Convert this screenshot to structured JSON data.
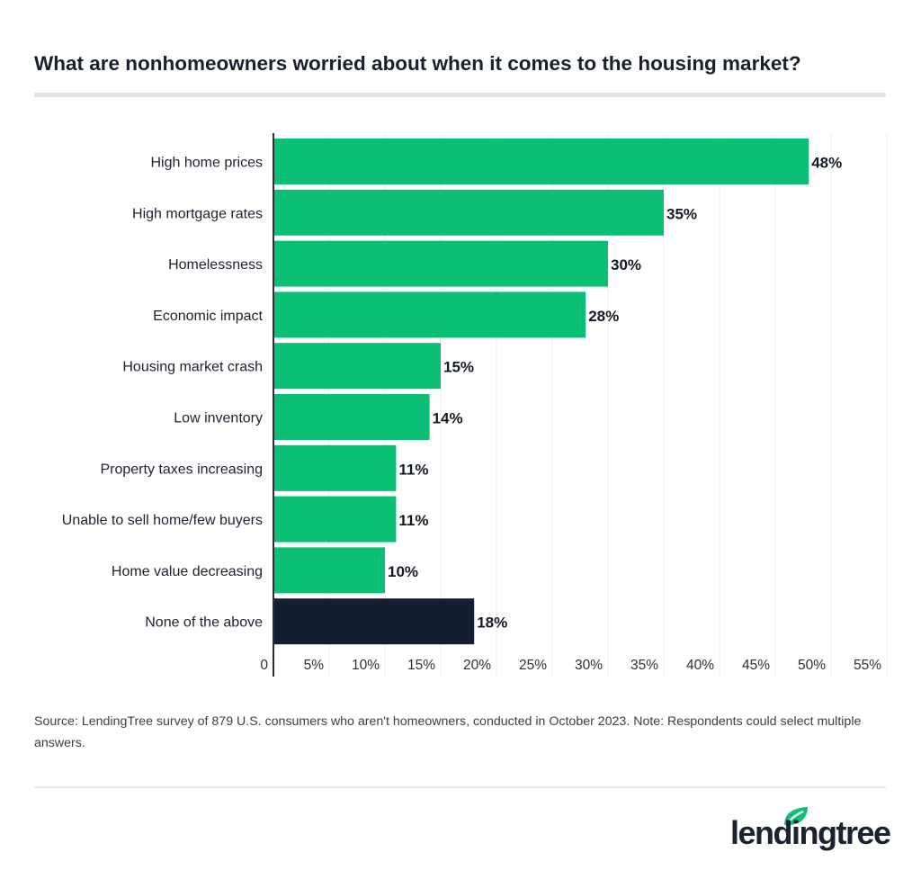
{
  "chart_data": {
    "type": "bar",
    "orientation": "horizontal",
    "title": "What are nonhomeowners worried about when it comes to the housing market?",
    "categories": [
      "High home prices",
      "High mortgage rates",
      "Homelessness",
      "Economic impact",
      "Housing market crash",
      "Low inventory",
      "Property taxes increasing",
      "Unable to sell home/few buyers",
      "Home value decreasing",
      "None of the above"
    ],
    "values": [
      48,
      35,
      30,
      28,
      15,
      14,
      11,
      11,
      10,
      18
    ],
    "value_labels": [
      "48%",
      "35%",
      "30%",
      "28%",
      "15%",
      "14%",
      "11%",
      "11%",
      "10%",
      "18%"
    ],
    "colors": [
      "#0bc074",
      "#0bc074",
      "#0bc074",
      "#0bc074",
      "#0bc074",
      "#0bc074",
      "#0bc074",
      "#0bc074",
      "#0bc074",
      "#131f30"
    ],
    "xlim": [
      0,
      55
    ],
    "xticks": [
      0,
      5,
      10,
      15,
      20,
      25,
      30,
      35,
      40,
      45,
      50,
      55
    ],
    "xtick_labels": [
      "0",
      "5%",
      "10%",
      "15%",
      "20%",
      "25%",
      "30%",
      "35%",
      "40%",
      "45%",
      "50%",
      "55%"
    ],
    "xlabel": "",
    "ylabel": "",
    "grid": "vertical"
  },
  "source": "Source: LendingTree survey of 879 U.S. consumers who aren't homeowners, conducted in October 2023. Note: Respondents could select multiple answers.",
  "logo": {
    "text": "lendingtree",
    "color": "#0bc074"
  }
}
